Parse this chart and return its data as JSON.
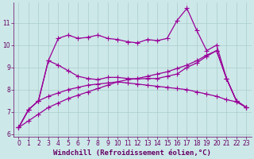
{
  "background_color": "#cde8e8",
  "line_color": "#990099",
  "marker": "+",
  "markersize": 4,
  "linewidth": 0.9,
  "xlabel": "Windchill (Refroidissement éolien,°C)",
  "xlim": [
    -0.5,
    23.5
  ],
  "ylim": [
    5.9,
    11.9
  ],
  "yticks": [
    6,
    7,
    8,
    9,
    10,
    11
  ],
  "xticks": [
    0,
    1,
    2,
    3,
    4,
    5,
    6,
    7,
    8,
    9,
    10,
    11,
    12,
    13,
    14,
    15,
    16,
    17,
    18,
    19,
    20,
    21,
    22,
    23
  ],
  "series": [
    {
      "x": [
        0,
        1,
        2,
        3,
        4,
        5,
        6,
        7,
        8,
        9,
        10,
        11,
        12,
        13,
        14,
        15,
        16,
        17,
        18,
        19,
        20,
        21,
        22,
        23
      ],
      "y": [
        6.3,
        7.1,
        7.5,
        9.3,
        10.3,
        10.45,
        10.3,
        10.35,
        10.45,
        10.3,
        10.25,
        10.15,
        10.1,
        10.25,
        10.2,
        10.3,
        11.1,
        11.65,
        10.65,
        9.75,
        10.0,
        8.5,
        7.5,
        7.2
      ]
    },
    {
      "x": [
        0,
        1,
        2,
        3,
        4,
        5,
        6,
        7,
        8,
        9,
        10,
        11,
        12,
        13,
        14,
        15,
        16,
        17,
        18,
        19,
        20,
        21,
        22,
        23
      ],
      "y": [
        6.3,
        7.1,
        7.5,
        9.3,
        9.1,
        8.85,
        8.6,
        8.5,
        8.45,
        8.55,
        8.55,
        8.5,
        8.48,
        8.5,
        8.5,
        8.6,
        8.7,
        9.0,
        9.2,
        9.5,
        9.75,
        8.5,
        7.5,
        7.2
      ]
    },
    {
      "x": [
        0,
        1,
        2,
        3,
        4,
        5,
        6,
        7,
        8,
        9,
        10,
        11,
        12,
        13,
        14,
        15,
        16,
        17,
        18,
        19,
        20,
        21,
        22,
        23
      ],
      "y": [
        6.3,
        6.6,
        6.9,
        7.2,
        7.4,
        7.6,
        7.75,
        7.9,
        8.05,
        8.2,
        8.35,
        8.45,
        8.5,
        8.6,
        8.7,
        8.8,
        8.95,
        9.1,
        9.3,
        9.55,
        9.75,
        8.5,
        7.5,
        7.2
      ]
    },
    {
      "x": [
        0,
        1,
        2,
        3,
        4,
        5,
        6,
        7,
        8,
        9,
        10,
        11,
        12,
        13,
        14,
        15,
        16,
        17,
        18,
        19,
        20,
        21,
        22,
        23
      ],
      "y": [
        6.3,
        7.1,
        7.5,
        7.7,
        7.85,
        8.0,
        8.1,
        8.2,
        8.25,
        8.3,
        8.35,
        8.3,
        8.25,
        8.2,
        8.15,
        8.1,
        8.05,
        8.0,
        7.9,
        7.8,
        7.7,
        7.55,
        7.45,
        7.2
      ]
    }
  ],
  "grid_color": "#aacccc",
  "tick_color": "#660066",
  "tick_fontsize": 5.5,
  "xlabel_fontsize": 6.5
}
